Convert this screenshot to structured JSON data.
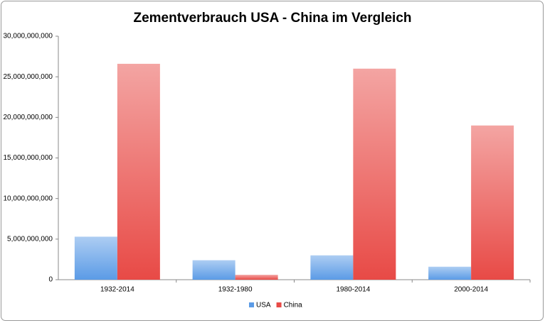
{
  "chart_data": {
    "type": "bar",
    "title": "Zementverbrauch USA - China im Vergleich",
    "categories": [
      "1932-2014",
      "1932-1980",
      "1980-2014",
      "2000-2014"
    ],
    "series": [
      {
        "name": "USA",
        "color": "#5b9be6",
        "values": [
          5300000000,
          2400000000,
          3000000000,
          1600000000
        ]
      },
      {
        "name": "China",
        "color": "#e84a46",
        "values": [
          26600000000,
          600000000,
          26000000000,
          19000000000
        ]
      }
    ],
    "ylim": [
      0,
      30000000000
    ],
    "yticks": [
      0,
      {
        "value": 5000000000,
        "label": "5,000,000,000"
      },
      {
        "value": 10000000000,
        "label": "10,000,000,000"
      },
      {
        "value": 15000000000,
        "label": "15,000,000,000"
      },
      {
        "value": 20000000000,
        "label": "20,000,000,000"
      },
      {
        "value": 25000000000,
        "label": "25,000,000,000"
      },
      {
        "value": 30000000000,
        "label": "30,000,000,000"
      }
    ],
    "grid": false,
    "legend": "bottom"
  }
}
